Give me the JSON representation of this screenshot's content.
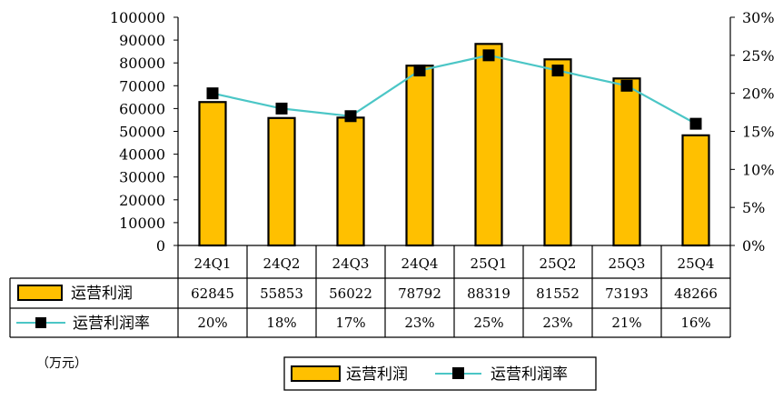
{
  "chart_data": {
    "type": "bar",
    "categories": [
      "24Q1",
      "24Q2",
      "24Q3",
      "24Q4",
      "25Q1",
      "25Q2",
      "25Q3",
      "25Q4"
    ],
    "series": [
      {
        "name": "运营利润",
        "type": "bar",
        "axis": "left",
        "values": [
          62845,
          55853,
          56022,
          78792,
          88319,
          81552,
          73193,
          48266
        ],
        "color": "#FFC000",
        "table_labels": [
          "62845",
          "55853",
          "56022",
          "78792",
          "88319",
          "81552",
          "73193",
          "48266"
        ]
      },
      {
        "name": "运营利润率",
        "type": "line",
        "axis": "right",
        "values": [
          0.2,
          0.18,
          0.17,
          0.23,
          0.25,
          0.23,
          0.21,
          0.16
        ],
        "color": "#4BC6C6",
        "marker_color": "#000000",
        "table_labels": [
          "20%",
          "18%",
          "17%",
          "23%",
          "25%",
          "23%",
          "21%",
          "16%"
        ]
      }
    ],
    "y_left": {
      "ylim": [
        0,
        100000
      ],
      "ticks": [
        "0",
        "10000",
        "20000",
        "30000",
        "40000",
        "50000",
        "60000",
        "70000",
        "80000",
        "90000",
        "100000"
      ]
    },
    "y_right": {
      "ylim": [
        0,
        0.3
      ],
      "ticks": [
        "0%",
        "5%",
        "10%",
        "15%",
        "20%",
        "25%",
        "30%"
      ]
    },
    "unit": "（万元）",
    "grid": false,
    "data_table": true,
    "legend_position": "bottom"
  }
}
